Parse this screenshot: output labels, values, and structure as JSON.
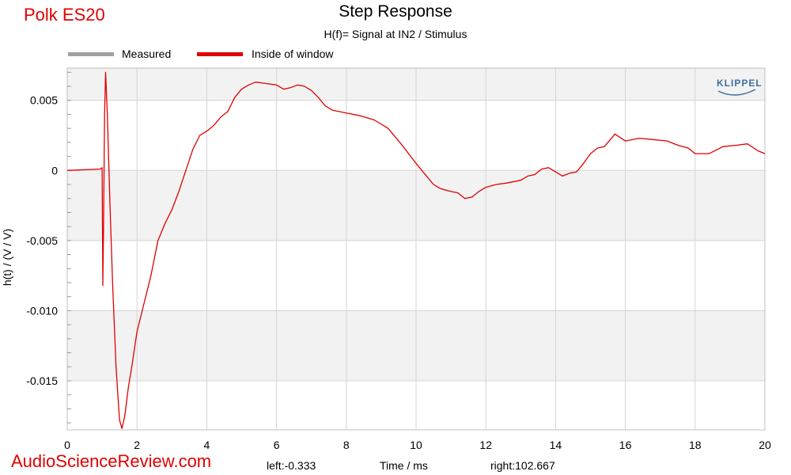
{
  "header": {
    "brand": "Polk ES20",
    "site": "AudioScienceReview.com",
    "klippel": "KLIPPEL"
  },
  "footer": {
    "left_readout": "left:-0.333",
    "right_readout": "right:102.667"
  },
  "chart_data": {
    "type": "line",
    "title": "Step Response",
    "subtitle": "H(f)= Signal at IN2 / Stimulus",
    "xlabel": "Time / ms",
    "ylabel": "h(t) / (V / V)",
    "xlim": [
      0,
      20
    ],
    "ylim": [
      -0.0185,
      0.0073
    ],
    "x_ticks": [
      0,
      2,
      4,
      6,
      8,
      10,
      12,
      14,
      16,
      18,
      20
    ],
    "x_tick_labels": [
      "0",
      "2",
      "4",
      "6",
      "8",
      "10",
      "12",
      "14",
      "16",
      "18",
      "20"
    ],
    "y_ticks": [
      0.005,
      0,
      -0.005,
      -0.01,
      -0.015
    ],
    "y_tick_labels": [
      "0.005",
      "0",
      "-0.005",
      "-0.010",
      "-0.015"
    ],
    "grid": true,
    "legend_position": "top-left",
    "series": [
      {
        "name": "Measured",
        "color": "#a0a0a0",
        "points": []
      },
      {
        "name": "Inside of window",
        "color": "#e00000",
        "points": [
          [
            0.0,
            0.0
          ],
          [
            0.95,
            0.0001
          ],
          [
            1.0,
            0.0002
          ],
          [
            1.02,
            -0.0082
          ],
          [
            1.04,
            -0.004
          ],
          [
            1.07,
            0.004
          ],
          [
            1.1,
            0.007
          ],
          [
            1.15,
            0.004
          ],
          [
            1.22,
            -0.002
          ],
          [
            1.3,
            -0.008
          ],
          [
            1.4,
            -0.014
          ],
          [
            1.5,
            -0.0178
          ],
          [
            1.57,
            -0.0184
          ],
          [
            1.65,
            -0.0175
          ],
          [
            1.75,
            -0.0155
          ],
          [
            1.85,
            -0.014
          ],
          [
            2.0,
            -0.0115
          ],
          [
            2.2,
            -0.0095
          ],
          [
            2.4,
            -0.0075
          ],
          [
            2.6,
            -0.005
          ],
          [
            2.8,
            -0.0038
          ],
          [
            3.0,
            -0.0028
          ],
          [
            3.2,
            -0.0015
          ],
          [
            3.4,
            0.0
          ],
          [
            3.6,
            0.0015
          ],
          [
            3.8,
            0.0025
          ],
          [
            4.0,
            0.0028
          ],
          [
            4.2,
            0.0032
          ],
          [
            4.4,
            0.0038
          ],
          [
            4.6,
            0.0042
          ],
          [
            4.8,
            0.0052
          ],
          [
            5.0,
            0.0058
          ],
          [
            5.2,
            0.0061
          ],
          [
            5.4,
            0.0063
          ],
          [
            5.7,
            0.0062
          ],
          [
            6.0,
            0.0061
          ],
          [
            6.2,
            0.0058
          ],
          [
            6.4,
            0.0059
          ],
          [
            6.6,
            0.0061
          ],
          [
            6.8,
            0.006
          ],
          [
            7.0,
            0.0057
          ],
          [
            7.2,
            0.0052
          ],
          [
            7.4,
            0.0046
          ],
          [
            7.6,
            0.0043
          ],
          [
            8.0,
            0.0041
          ],
          [
            8.4,
            0.0039
          ],
          [
            8.8,
            0.0036
          ],
          [
            9.2,
            0.003
          ],
          [
            9.6,
            0.0018
          ],
          [
            10.0,
            0.0005
          ],
          [
            10.3,
            -0.0004
          ],
          [
            10.5,
            -0.001
          ],
          [
            10.7,
            -0.0013
          ],
          [
            11.0,
            -0.0015
          ],
          [
            11.2,
            -0.0016
          ],
          [
            11.4,
            -0.002
          ],
          [
            11.6,
            -0.0019
          ],
          [
            11.8,
            -0.0015
          ],
          [
            12.0,
            -0.0012
          ],
          [
            12.3,
            -0.001
          ],
          [
            12.6,
            -0.0009
          ],
          [
            13.0,
            -0.0007
          ],
          [
            13.2,
            -0.0004
          ],
          [
            13.4,
            -0.0003
          ],
          [
            13.6,
            0.0001
          ],
          [
            13.8,
            0.0002
          ],
          [
            14.0,
            -0.0001
          ],
          [
            14.2,
            -0.0004
          ],
          [
            14.4,
            -0.0002
          ],
          [
            14.6,
            -0.0001
          ],
          [
            14.8,
            0.0005
          ],
          [
            15.0,
            0.0012
          ],
          [
            15.2,
            0.0016
          ],
          [
            15.4,
            0.0017
          ],
          [
            15.7,
            0.0026
          ],
          [
            16.0,
            0.0021
          ],
          [
            16.4,
            0.0023
          ],
          [
            16.8,
            0.0022
          ],
          [
            17.2,
            0.0021
          ],
          [
            17.5,
            0.0018
          ],
          [
            17.8,
            0.0016
          ],
          [
            18.0,
            0.0012
          ],
          [
            18.4,
            0.0012
          ],
          [
            18.8,
            0.0017
          ],
          [
            19.2,
            0.0018
          ],
          [
            19.5,
            0.0019
          ],
          [
            19.8,
            0.0014
          ],
          [
            20.0,
            0.0012
          ]
        ]
      }
    ]
  }
}
